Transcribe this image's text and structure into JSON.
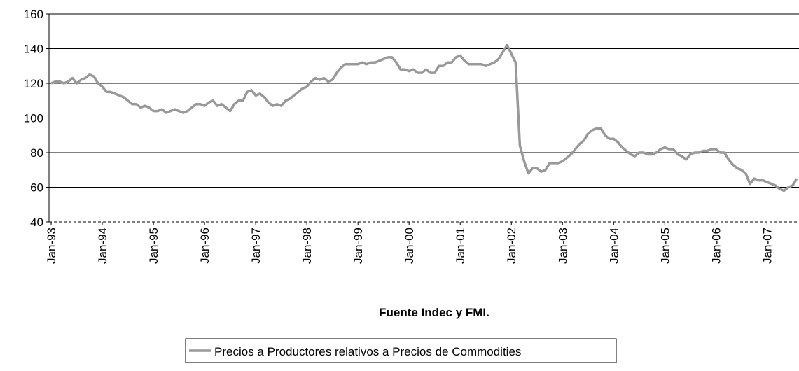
{
  "chart_data": {
    "type": "line",
    "x_label": "Fuente Indec y FMI.",
    "categories": [
      "Jan-93",
      null,
      null,
      null,
      null,
      null,
      null,
      null,
      null,
      null,
      null,
      null,
      "Jan-94",
      null,
      null,
      null,
      null,
      null,
      null,
      null,
      null,
      null,
      null,
      null,
      "Jan-95",
      null,
      null,
      null,
      null,
      null,
      null,
      null,
      null,
      null,
      null,
      null,
      "Jan-96",
      null,
      null,
      null,
      null,
      null,
      null,
      null,
      null,
      null,
      null,
      null,
      "Jan-97",
      null,
      null,
      null,
      null,
      null,
      null,
      null,
      null,
      null,
      null,
      null,
      "Jan-98",
      null,
      null,
      null,
      null,
      null,
      null,
      null,
      null,
      null,
      null,
      null,
      "Jan-99",
      null,
      null,
      null,
      null,
      null,
      null,
      null,
      null,
      null,
      null,
      null,
      "Jan-00",
      null,
      null,
      null,
      null,
      null,
      null,
      null,
      null,
      null,
      null,
      null,
      "Jan-01",
      null,
      null,
      null,
      null,
      null,
      null,
      null,
      null,
      null,
      null,
      null,
      "Jan-02",
      null,
      null,
      null,
      null,
      null,
      null,
      null,
      null,
      null,
      null,
      null,
      "Jan-03",
      null,
      null,
      null,
      null,
      null,
      null,
      null,
      null,
      null,
      null,
      null,
      "Jan-04",
      null,
      null,
      null,
      null,
      null,
      null,
      null,
      null,
      null,
      null,
      null,
      "Jan-05",
      null,
      null,
      null,
      null,
      null,
      null,
      null,
      null,
      null,
      null,
      null,
      "Jan-06",
      null,
      null,
      null,
      null,
      null,
      null,
      null,
      null,
      null,
      null,
      null,
      "Jan-07",
      null,
      null,
      null,
      null,
      null,
      null,
      null
    ],
    "series": [
      {
        "name": "Precios a Productores relativos a Precios de Commodities",
        "color": "#999999",
        "values": [
          120,
          121,
          121,
          120,
          121,
          123,
          120,
          122,
          123,
          125,
          124,
          120,
          118,
          115,
          115,
          114,
          113,
          112,
          110,
          108,
          108,
          106,
          107,
          106,
          104,
          104,
          105,
          103,
          104,
          105,
          104,
          103,
          104,
          106,
          108,
          108,
          107,
          109,
          110,
          107,
          108,
          106,
          104,
          108,
          110,
          110,
          115,
          116,
          113,
          114,
          112,
          109,
          107,
          108,
          107,
          110,
          111,
          113,
          115,
          117,
          118,
          121,
          123,
          122,
          123,
          121,
          122,
          126,
          129,
          131,
          131,
          131,
          131,
          132,
          131,
          132,
          132,
          133,
          134,
          135,
          135,
          132,
          128,
          128,
          127,
          128,
          126,
          126,
          128,
          126,
          126,
          130,
          130,
          132,
          132,
          135,
          136,
          133,
          131,
          131,
          131,
          131,
          130,
          131,
          132,
          134,
          138,
          142,
          137,
          132,
          84,
          75,
          68,
          71,
          71,
          69,
          70,
          74,
          74,
          74,
          75,
          77,
          79,
          82,
          85,
          87,
          91,
          93,
          94,
          94,
          90,
          88,
          88,
          86,
          83,
          81,
          79,
          78,
          80,
          80,
          79,
          79,
          80,
          82,
          83,
          82,
          82,
          79,
          78,
          76,
          79,
          80,
          80,
          81,
          81,
          82,
          82,
          80,
          80,
          76,
          73,
          71,
          70,
          68,
          62,
          65,
          64,
          64,
          63,
          62,
          61,
          59,
          58,
          60,
          61,
          65
        ]
      }
    ],
    "ylim": [
      40,
      160
    ],
    "yticks": [
      40,
      60,
      80,
      100,
      120,
      140,
      160
    ],
    "grid": true,
    "legend": "bottom"
  }
}
